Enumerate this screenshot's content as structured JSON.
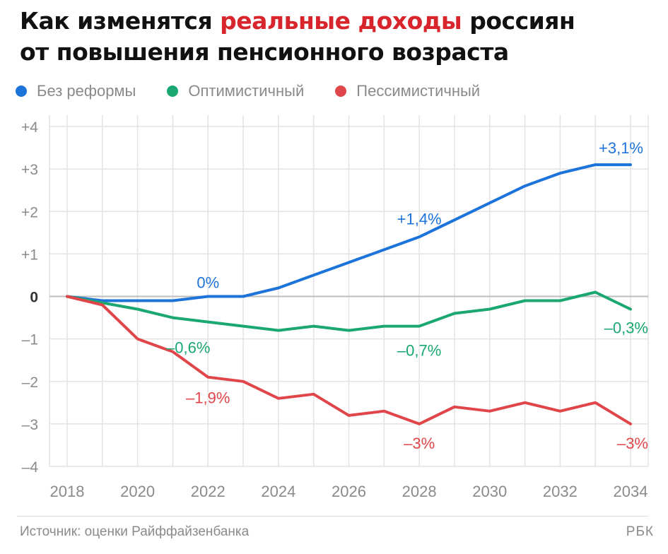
{
  "header": {
    "title_part1": "Как изменятся ",
    "title_highlight": "реальные доходы",
    "title_part2": " россиян",
    "title_line2": "от повышения пенсионного возраста"
  },
  "footer": {
    "source": "Источник: оценки Райффайзенбанка",
    "brand": "РБК"
  },
  "colors": {
    "blue": "#1c73d9",
    "green": "#1aa771",
    "red": "#e0454a",
    "grid": "#e3e3e3",
    "axis_text": "#8a8a8a",
    "highlight": "#d8252c"
  },
  "chart_data": {
    "type": "line",
    "title": "Как изменятся реальные доходы россиян от повышения пенсионного возраста",
    "xlabel": "",
    "ylabel": "",
    "xlim": [
      2018,
      2034
    ],
    "ylim": [
      -4,
      4
    ],
    "grid": true,
    "legend_position": "top-left",
    "x": [
      2018,
      2019,
      2020,
      2021,
      2022,
      2023,
      2024,
      2025,
      2026,
      2027,
      2028,
      2029,
      2030,
      2031,
      2032,
      2033,
      2034
    ],
    "x_ticks": [
      "2018",
      "2020",
      "2022",
      "2024",
      "2026",
      "2028",
      "2030",
      "2032",
      "2034"
    ],
    "x_tick_values": [
      2018,
      2020,
      2022,
      2024,
      2026,
      2028,
      2030,
      2032,
      2034
    ],
    "y_ticks": [
      "+4",
      "+3",
      "+2",
      "+1",
      "0",
      "–1",
      "–2",
      "–3",
      "–4"
    ],
    "y_tick_values": [
      4,
      3,
      2,
      1,
      0,
      -1,
      -2,
      -3,
      -4
    ],
    "series": [
      {
        "name": "Без реформы",
        "color": "#1c73d9",
        "values": [
          0,
          -0.1,
          -0.1,
          -0.1,
          0,
          0,
          0.2,
          0.5,
          0.8,
          1.1,
          1.4,
          1.8,
          2.2,
          2.6,
          2.9,
          3.1,
          3.1
        ]
      },
      {
        "name": "Оптимистичный",
        "color": "#1aa771",
        "values": [
          0,
          -0.15,
          -0.3,
          -0.5,
          -0.6,
          -0.7,
          -0.8,
          -0.7,
          -0.8,
          -0.7,
          -0.7,
          -0.4,
          -0.3,
          -0.1,
          -0.1,
          0.1,
          -0.3
        ]
      },
      {
        "name": "Пессимистичный",
        "color": "#e0454a",
        "values": [
          0,
          -0.2,
          -1.0,
          -1.3,
          -1.9,
          -2.0,
          -2.4,
          -2.3,
          -2.8,
          -2.7,
          -3.0,
          -2.6,
          -2.7,
          -2.5,
          -2.7,
          -2.5,
          -3.0
        ]
      }
    ],
    "annotations": [
      {
        "series": 0,
        "x": 2022,
        "y": 0,
        "text": "0%"
      },
      {
        "series": 0,
        "x": 2028,
        "y": 1.4,
        "text": "+1,4%"
      },
      {
        "series": 0,
        "x": 2034,
        "y": 3.1,
        "text": "+3,1%"
      },
      {
        "series": 1,
        "x": 2022,
        "y": -0.6,
        "text": "–0,6%"
      },
      {
        "series": 1,
        "x": 2028,
        "y": -0.7,
        "text": "–0,7%"
      },
      {
        "series": 1,
        "x": 2034,
        "y": -0.3,
        "text": "–0,3%"
      },
      {
        "series": 2,
        "x": 2022,
        "y": -1.9,
        "text": "–1,9%"
      },
      {
        "series": 2,
        "x": 2028,
        "y": -3.0,
        "text": "–3%"
      },
      {
        "series": 2,
        "x": 2034,
        "y": -3.0,
        "text": "–3%"
      }
    ]
  }
}
